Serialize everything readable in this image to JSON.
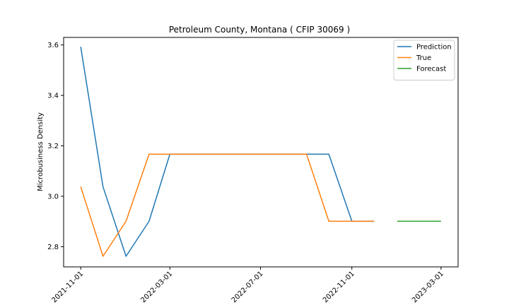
{
  "chart_data": {
    "type": "line",
    "title": "Petroleum County, Montana ( CFIP 30069 )",
    "xlabel": "",
    "ylabel": "Microbusiness Density",
    "xlim": [
      "2021-10-09",
      "2023-03-24"
    ],
    "ylim": [
      2.72,
      3.63
    ],
    "x_ticks": [
      "2021-11-01",
      "2022-03-01",
      "2022-07-01",
      "2022-11-01",
      "2023-03-01"
    ],
    "y_ticks": [
      2.8,
      3.0,
      3.2,
      3.4,
      3.6
    ],
    "y_tick_labels": [
      "2.8",
      "3.0",
      "3.2",
      "3.4",
      "3.6"
    ],
    "legend_position": "top-right",
    "grid": false,
    "series": [
      {
        "name": "Prediction",
        "color": "#1f77b4",
        "points": [
          [
            "2021-11-01",
            3.593
          ],
          [
            "2021-12-01",
            3.038
          ],
          [
            "2022-01-01",
            2.762
          ],
          [
            "2022-02-01",
            2.901
          ],
          [
            "2022-03-01",
            3.167
          ],
          [
            "2022-04-01",
            3.167
          ],
          [
            "2022-05-01",
            3.167
          ],
          [
            "2022-06-01",
            3.167
          ],
          [
            "2022-07-01",
            3.167
          ],
          [
            "2022-08-01",
            3.167
          ],
          [
            "2022-09-01",
            3.167
          ],
          [
            "2022-10-01",
            3.167
          ],
          [
            "2022-11-01",
            2.901
          ],
          [
            "2022-12-01",
            2.901
          ]
        ]
      },
      {
        "name": "True",
        "color": "#ff7f0e",
        "points": [
          [
            "2021-11-01",
            3.038
          ],
          [
            "2021-12-01",
            2.762
          ],
          [
            "2022-01-01",
            2.901
          ],
          [
            "2022-02-01",
            3.167
          ],
          [
            "2022-03-01",
            3.167
          ],
          [
            "2022-04-01",
            3.167
          ],
          [
            "2022-05-01",
            3.167
          ],
          [
            "2022-06-01",
            3.167
          ],
          [
            "2022-07-01",
            3.167
          ],
          [
            "2022-08-01",
            3.167
          ],
          [
            "2022-09-01",
            3.167
          ],
          [
            "2022-10-01",
            2.901
          ],
          [
            "2022-11-01",
            2.901
          ],
          [
            "2022-12-01",
            2.901
          ]
        ]
      },
      {
        "name": "Forecast",
        "color": "#2ca02c",
        "points": [
          [
            "2023-01-01",
            2.901
          ],
          [
            "2023-02-01",
            2.901
          ],
          [
            "2023-03-01",
            2.901
          ]
        ]
      }
    ]
  }
}
